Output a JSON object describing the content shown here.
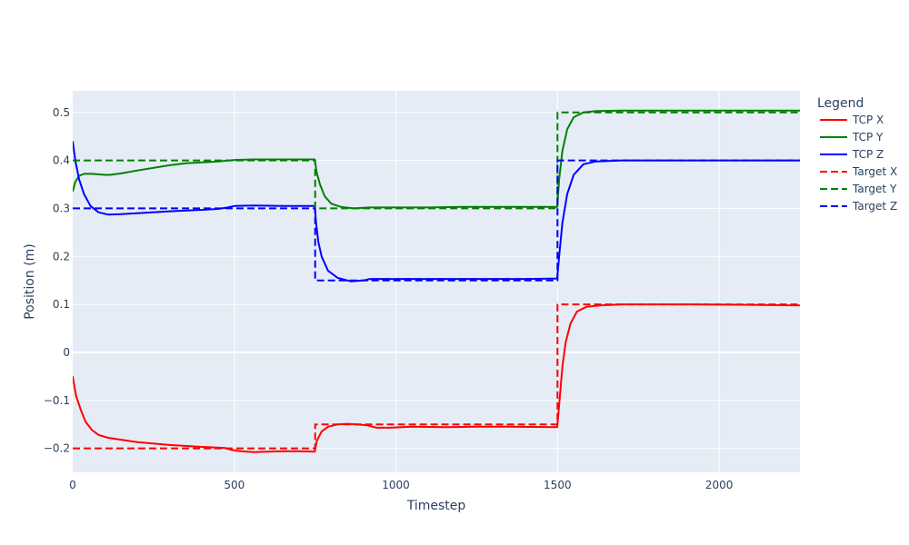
{
  "chart_data": {
    "type": "line",
    "xlabel": "Timestep",
    "ylabel": "Position (m)",
    "xlim": [
      0,
      2250
    ],
    "ylim": [
      -0.25,
      0.545
    ],
    "x_ticks": [
      0,
      500,
      1000,
      1500,
      2000
    ],
    "x_tick_labels": [
      "0",
      "500",
      "1000",
      "1500",
      "2000"
    ],
    "y_ticks": [
      -0.2,
      -0.1,
      0,
      0.1,
      0.2,
      0.3,
      0.4,
      0.5
    ],
    "y_tick_labels": [
      "−0.2",
      "−0.1",
      "0",
      "0.1",
      "0.2",
      "0.3",
      "0.4",
      "0.5"
    ],
    "grid": true,
    "legend": {
      "title": "Legend",
      "position": "right"
    },
    "series": [
      {
        "name": "TCP X",
        "color": "#ff0000",
        "dash": "solid",
        "points": [
          [
            0,
            -0.05
          ],
          [
            10,
            -0.09
          ],
          [
            25,
            -0.12
          ],
          [
            40,
            -0.145
          ],
          [
            60,
            -0.162
          ],
          [
            80,
            -0.172
          ],
          [
            110,
            -0.178
          ],
          [
            150,
            -0.182
          ],
          [
            200,
            -0.187
          ],
          [
            300,
            -0.193
          ],
          [
            400,
            -0.197
          ],
          [
            470,
            -0.199
          ],
          [
            490,
            -0.203
          ],
          [
            520,
            -0.206
          ],
          [
            560,
            -0.208
          ],
          [
            600,
            -0.207
          ],
          [
            650,
            -0.206
          ],
          [
            700,
            -0.206
          ],
          [
            749,
            -0.207
          ],
          [
            755,
            -0.185
          ],
          [
            770,
            -0.165
          ],
          [
            790,
            -0.155
          ],
          [
            820,
            -0.15
          ],
          [
            850,
            -0.149
          ],
          [
            880,
            -0.15
          ],
          [
            910,
            -0.152
          ],
          [
            940,
            -0.157
          ],
          [
            980,
            -0.157
          ],
          [
            1050,
            -0.155
          ],
          [
            1150,
            -0.156
          ],
          [
            1250,
            -0.155
          ],
          [
            1350,
            -0.155
          ],
          [
            1499,
            -0.156
          ],
          [
            1505,
            -0.11
          ],
          [
            1515,
            -0.03
          ],
          [
            1525,
            0.02
          ],
          [
            1540,
            0.06
          ],
          [
            1560,
            0.085
          ],
          [
            1590,
            0.095
          ],
          [
            1630,
            0.098
          ],
          [
            1700,
            0.1
          ],
          [
            1900,
            0.1
          ],
          [
            2100,
            0.099
          ],
          [
            2250,
            0.098
          ]
        ]
      },
      {
        "name": "TCP Y",
        "color": "#008000",
        "dash": "solid",
        "points": [
          [
            0,
            0.335
          ],
          [
            8,
            0.355
          ],
          [
            20,
            0.368
          ],
          [
            35,
            0.372
          ],
          [
            60,
            0.372
          ],
          [
            100,
            0.37
          ],
          [
            115,
            0.37
          ],
          [
            150,
            0.373
          ],
          [
            200,
            0.379
          ],
          [
            300,
            0.39
          ],
          [
            350,
            0.394
          ],
          [
            400,
            0.396
          ],
          [
            450,
            0.398
          ],
          [
            500,
            0.401
          ],
          [
            560,
            0.402
          ],
          [
            650,
            0.402
          ],
          [
            749,
            0.402
          ],
          [
            755,
            0.375
          ],
          [
            765,
            0.35
          ],
          [
            780,
            0.325
          ],
          [
            800,
            0.31
          ],
          [
            830,
            0.303
          ],
          [
            870,
            0.3
          ],
          [
            920,
            0.302
          ],
          [
            1000,
            0.302
          ],
          [
            1100,
            0.302
          ],
          [
            1200,
            0.303
          ],
          [
            1300,
            0.303
          ],
          [
            1400,
            0.303
          ],
          [
            1499,
            0.303
          ],
          [
            1505,
            0.36
          ],
          [
            1515,
            0.42
          ],
          [
            1530,
            0.465
          ],
          [
            1550,
            0.49
          ],
          [
            1580,
            0.5
          ],
          [
            1620,
            0.503
          ],
          [
            1700,
            0.504
          ],
          [
            2000,
            0.504
          ],
          [
            2250,
            0.504
          ]
        ]
      },
      {
        "name": "TCP Z",
        "color": "#0000ff",
        "dash": "solid",
        "points": [
          [
            0,
            0.44
          ],
          [
            8,
            0.4
          ],
          [
            20,
            0.36
          ],
          [
            35,
            0.33
          ],
          [
            55,
            0.305
          ],
          [
            80,
            0.292
          ],
          [
            110,
            0.287
          ],
          [
            150,
            0.288
          ],
          [
            200,
            0.29
          ],
          [
            300,
            0.294
          ],
          [
            400,
            0.297
          ],
          [
            450,
            0.299
          ],
          [
            480,
            0.302
          ],
          [
            500,
            0.305
          ],
          [
            560,
            0.306
          ],
          [
            650,
            0.305
          ],
          [
            749,
            0.305
          ],
          [
            753,
            0.27
          ],
          [
            760,
            0.23
          ],
          [
            770,
            0.2
          ],
          [
            790,
            0.17
          ],
          [
            820,
            0.155
          ],
          [
            860,
            0.148
          ],
          [
            900,
            0.15
          ],
          [
            920,
            0.153
          ],
          [
            1000,
            0.153
          ],
          [
            1100,
            0.153
          ],
          [
            1200,
            0.153
          ],
          [
            1300,
            0.153
          ],
          [
            1400,
            0.153
          ],
          [
            1499,
            0.154
          ],
          [
            1505,
            0.2
          ],
          [
            1515,
            0.27
          ],
          [
            1530,
            0.33
          ],
          [
            1550,
            0.37
          ],
          [
            1580,
            0.392
          ],
          [
            1620,
            0.398
          ],
          [
            1700,
            0.4
          ],
          [
            2000,
            0.4
          ],
          [
            2250,
            0.4
          ]
        ]
      },
      {
        "name": "Target X",
        "color": "#ff0000",
        "dash": "dashed",
        "points": [
          [
            0,
            -0.2
          ],
          [
            750,
            -0.2
          ],
          [
            750,
            -0.15
          ],
          [
            1500,
            -0.15
          ],
          [
            1500,
            0.1
          ],
          [
            2250,
            0.1
          ]
        ]
      },
      {
        "name": "Target Y",
        "color": "#008000",
        "dash": "dashed",
        "points": [
          [
            0,
            0.4
          ],
          [
            750,
            0.4
          ],
          [
            750,
            0.3
          ],
          [
            1500,
            0.3
          ],
          [
            1500,
            0.5
          ],
          [
            2250,
            0.5
          ]
        ]
      },
      {
        "name": "Target Z",
        "color": "#0000ff",
        "dash": "dashed",
        "points": [
          [
            0,
            0.3
          ],
          [
            750,
            0.3
          ],
          [
            750,
            0.15
          ],
          [
            1500,
            0.15
          ],
          [
            1500,
            0.4
          ],
          [
            2250,
            0.4
          ]
        ]
      }
    ]
  }
}
